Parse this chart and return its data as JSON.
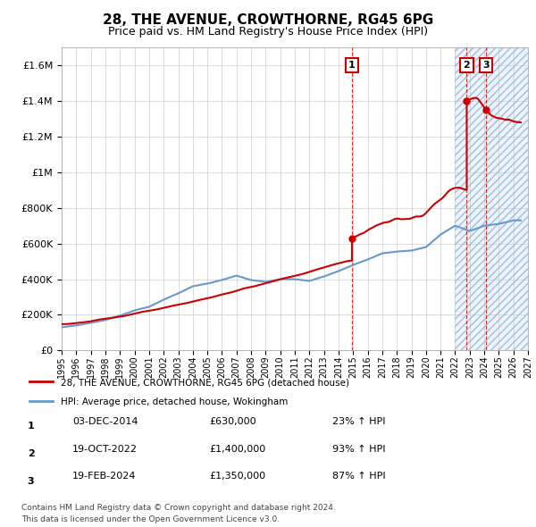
{
  "title": "28, THE AVENUE, CROWTHORNE, RG45 6PG",
  "subtitle": "Price paid vs. HM Land Registry's House Price Index (HPI)",
  "legend_line1": "28, THE AVENUE, CROWTHORNE, RG45 6PG (detached house)",
  "legend_line2": "HPI: Average price, detached house, Wokingham",
  "footer_line1": "Contains HM Land Registry data © Crown copyright and database right 2024.",
  "footer_line2": "This data is licensed under the Open Government Licence v3.0.",
  "sale_events": [
    {
      "label": "1",
      "date": "03-DEC-2014",
      "price": "£630,000",
      "hpi": "23% ↑ HPI",
      "year": 2014.92
    },
    {
      "label": "2",
      "date": "19-OCT-2022",
      "price": "£1,400,000",
      "hpi": "93% ↑ HPI",
      "year": 2022.8
    },
    {
      "label": "3",
      "date": "19-FEB-2024",
      "price": "£1,350,000",
      "hpi": "87% ↑ HPI",
      "year": 2024.13
    }
  ],
  "red_line_color": "#cc0000",
  "blue_line_color": "#6699cc",
  "hatch_bg_color": "#ddeeff",
  "hatch_edge_color": "#aabbcc",
  "grid_color": "#cccccc",
  "marker_box_color": "#cc0000",
  "ylim": [
    0,
    1700000
  ],
  "xlim_start": 1995,
  "xlim_end": 2027,
  "hatch_start": 2022.0
}
